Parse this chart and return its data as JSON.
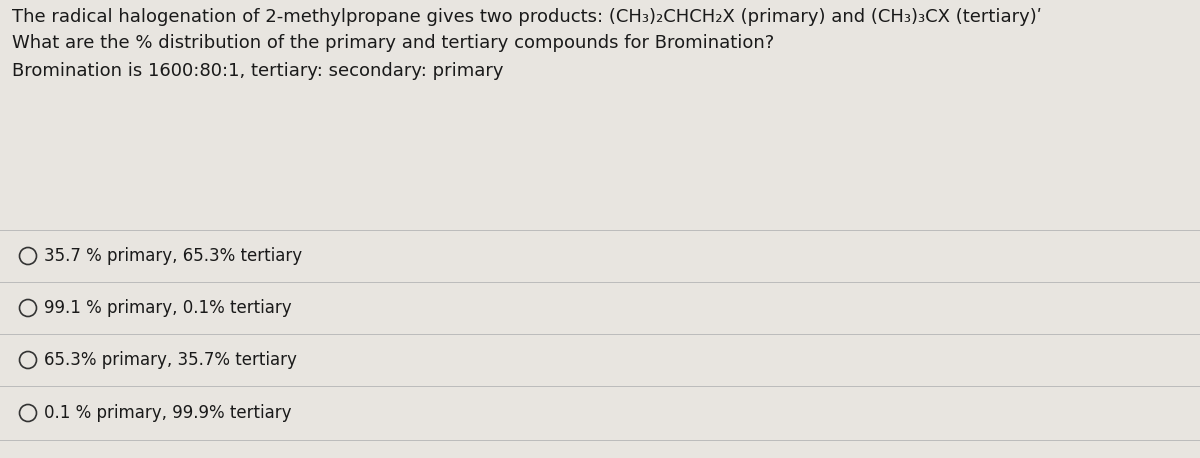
{
  "background_color": "#e8e5e0",
  "text_color": "#1a1a1a",
  "title_line1": "The radical halogenation of 2-methylpropane gives two products: (CH₃)₂CHCH₂X (primary) and (CH₃)₃CX (tertiary)ʹ",
  "title_line2": "What are the % distribution of the primary and tertiary compounds for Bromination?",
  "info_line": "Bromination is 1600:80:1, tertiary: secondary: primary",
  "options": [
    "35.7 % primary, 65.3% tertiary",
    "99.1 % primary, 0.1% tertiary",
    "65.3% primary, 35.7% tertiary",
    "0.1 % primary, 99.9% tertiary"
  ],
  "font_size_title": 13.0,
  "font_size_info": 13.0,
  "font_size_options": 12.0,
  "line_color": "#bbbbbb",
  "circle_color": "#333333"
}
